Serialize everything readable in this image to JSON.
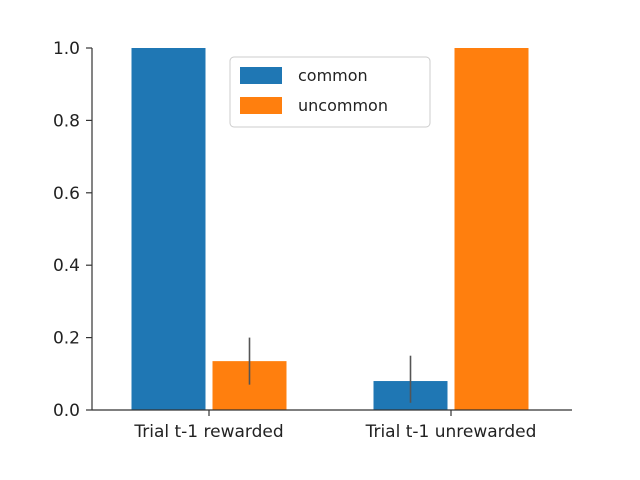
{
  "chart_data": {
    "type": "bar",
    "title": "",
    "xlabel": "",
    "ylabel": "",
    "categories": [
      "Trial t-1 rewarded",
      "Trial t-1 unrewarded"
    ],
    "series": [
      {
        "name": "common",
        "color": "#1f77b4",
        "values": [
          1.0,
          0.08
        ],
        "error_low": [
          1.0,
          0.02
        ],
        "error_high": [
          1.0,
          0.15
        ]
      },
      {
        "name": "uncommon",
        "color": "#ff7f0e",
        "values": [
          0.135,
          1.0
        ],
        "error_low": [
          0.07,
          1.0
        ],
        "error_high": [
          0.2,
          1.0
        ]
      }
    ],
    "ylim": [
      0.0,
      1.0
    ],
    "yticks": [
      "0.0",
      "0.2",
      "0.4",
      "0.6",
      "0.8",
      "1.0"
    ],
    "grid": false,
    "legend_position": "top-center"
  }
}
